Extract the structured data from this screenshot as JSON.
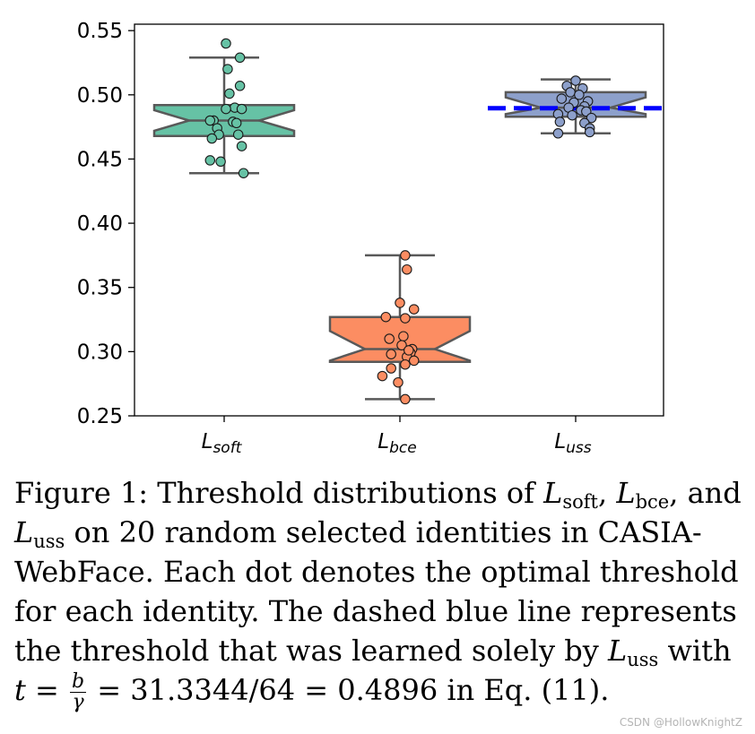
{
  "chart_data": {
    "type": "box",
    "categories": [
      {
        "main": "L",
        "sub": "soft"
      },
      {
        "main": "L",
        "sub": "bce"
      },
      {
        "main": "L",
        "sub": "uss"
      }
    ],
    "ylim": [
      0.25,
      0.555
    ],
    "yticks": [
      "0.25",
      "0.30",
      "0.35",
      "0.40",
      "0.45",
      "0.50",
      "0.55"
    ],
    "yticks_values": [
      0.25,
      0.3,
      0.35,
      0.4,
      0.45,
      0.5,
      0.55
    ],
    "boxes": [
      {
        "whisker_low": 0.439,
        "q1": 0.468,
        "median": 0.48,
        "q3": 0.492,
        "whisker_high": 0.529,
        "notch_low": 0.472,
        "notch_high": 0.488,
        "color": "#66c2a5"
      },
      {
        "whisker_low": 0.263,
        "q1": 0.292,
        "median": 0.302,
        "q3": 0.327,
        "whisker_high": 0.375,
        "notch_low": 0.293,
        "notch_high": 0.316,
        "color": "#fc8d62"
      },
      {
        "whisker_low": 0.47,
        "q1": 0.483,
        "median": 0.49,
        "q3": 0.502,
        "whisker_high": 0.512,
        "notch_low": 0.485,
        "notch_high": 0.498,
        "color": "#8da0cb"
      }
    ],
    "points": [
      [
        {
          "dx": 0.01,
          "y": 0.54
        },
        {
          "dx": 0.09,
          "y": 0.529
        },
        {
          "dx": 0.02,
          "y": 0.52
        },
        {
          "dx": 0.09,
          "y": 0.507
        },
        {
          "dx": 0.03,
          "y": 0.501
        },
        {
          "dx": 0.06,
          "y": 0.49
        },
        {
          "dx": 0.01,
          "y": 0.489
        },
        {
          "dx": 0.1,
          "y": 0.489
        },
        {
          "dx": -0.06,
          "y": 0.48
        },
        {
          "dx": 0.05,
          "y": 0.479
        },
        {
          "dx": -0.08,
          "y": 0.48
        },
        {
          "dx": 0.07,
          "y": 0.478
        },
        {
          "dx": -0.04,
          "y": 0.474
        },
        {
          "dx": 0.08,
          "y": 0.469
        },
        {
          "dx": -0.03,
          "y": 0.469
        },
        {
          "dx": -0.07,
          "y": 0.466
        },
        {
          "dx": 0.1,
          "y": 0.46
        },
        {
          "dx": -0.08,
          "y": 0.449
        },
        {
          "dx": -0.02,
          "y": 0.448
        },
        {
          "dx": 0.11,
          "y": 0.439
        }
      ],
      [
        {
          "dx": 0.03,
          "y": 0.375
        },
        {
          "dx": 0.04,
          "y": 0.364
        },
        {
          "dx": 0.0,
          "y": 0.338
        },
        {
          "dx": 0.08,
          "y": 0.333
        },
        {
          "dx": -0.08,
          "y": 0.327
        },
        {
          "dx": 0.03,
          "y": 0.326
        },
        {
          "dx": 0.02,
          "y": 0.312
        },
        {
          "dx": -0.06,
          "y": 0.31
        },
        {
          "dx": 0.07,
          "y": 0.302
        },
        {
          "dx": 0.06,
          "y": 0.299
        },
        {
          "dx": 0.01,
          "y": 0.305
        },
        {
          "dx": -0.05,
          "y": 0.298
        },
        {
          "dx": 0.04,
          "y": 0.296
        },
        {
          "dx": 0.08,
          "y": 0.293
        },
        {
          "dx": 0.03,
          "y": 0.29
        },
        {
          "dx": -0.05,
          "y": 0.287
        },
        {
          "dx": -0.1,
          "y": 0.281
        },
        {
          "dx": -0.01,
          "y": 0.276
        },
        {
          "dx": 0.03,
          "y": 0.263
        },
        {
          "dx": 0.05,
          "y": 0.301
        }
      ],
      [
        {
          "dx": 0.0,
          "y": 0.511
        },
        {
          "dx": -0.05,
          "y": 0.507
        },
        {
          "dx": 0.04,
          "y": 0.505
        },
        {
          "dx": -0.03,
          "y": 0.502
        },
        {
          "dx": 0.02,
          "y": 0.5
        },
        {
          "dx": -0.08,
          "y": 0.497
        },
        {
          "dx": 0.07,
          "y": 0.495
        },
        {
          "dx": -0.01,
          "y": 0.494
        },
        {
          "dx": 0.05,
          "y": 0.491
        },
        {
          "dx": -0.04,
          "y": 0.49
        },
        {
          "dx": 0.03,
          "y": 0.488
        },
        {
          "dx": 0.06,
          "y": 0.487
        },
        {
          "dx": -0.1,
          "y": 0.485
        },
        {
          "dx": -0.02,
          "y": 0.484
        },
        {
          "dx": 0.09,
          "y": 0.482
        },
        {
          "dx": -0.09,
          "y": 0.479
        },
        {
          "dx": 0.05,
          "y": 0.478
        },
        {
          "dx": 0.08,
          "y": 0.474
        },
        {
          "dx": 0.08,
          "y": 0.471
        },
        {
          "dx": -0.1,
          "y": 0.47
        }
      ]
    ],
    "threshold_line": {
      "y": 0.4896,
      "color": "#0000ff",
      "style": "dashed",
      "category_index": 2
    }
  },
  "caption": {
    "lines": [
      [
        {
          "t": "text",
          "v": "Figure 1: Threshold distributions of "
        },
        {
          "t": "math",
          "v": "L",
          "sub": "soft"
        },
        {
          "t": "text",
          "v": ", "
        },
        {
          "t": "math",
          "v": "L",
          "sub": "bce"
        },
        {
          "t": "text",
          "v": ", and"
        }
      ],
      [
        {
          "t": "math",
          "v": "L",
          "sub": "uss"
        },
        {
          "t": "text",
          "v": " on 20 random selected identities in CASIA-"
        }
      ],
      [
        {
          "t": "text",
          "v": "WebFace. Each dot denotes the optimal threshold"
        }
      ],
      [
        {
          "t": "text",
          "v": "for each identity. The dashed blue line represents"
        }
      ],
      [
        {
          "t": "text",
          "v": "the threshold that was learned solely by "
        },
        {
          "t": "math",
          "v": "L",
          "sub": "uss"
        },
        {
          "t": "text",
          "v": " with"
        }
      ],
      [
        {
          "t": "math",
          "v": "t"
        },
        {
          "t": "text",
          "v": " = "
        },
        {
          "t": "frac",
          "num": "b",
          "den": "γ"
        },
        {
          "t": "text",
          "v": " = 31.3344/64 = 0.4896 in Eq. (11)."
        }
      ]
    ]
  },
  "watermark": "CSDN @HollowKnightZ"
}
